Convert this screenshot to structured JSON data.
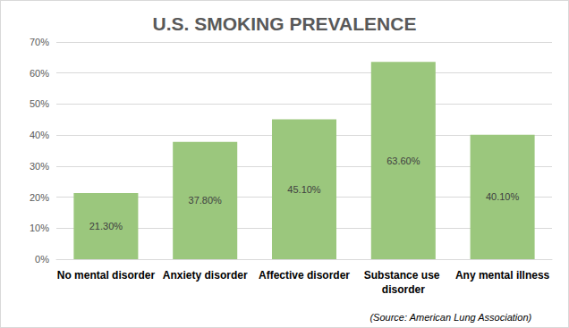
{
  "chart_data": {
    "type": "bar",
    "title": "U.S. SMOKING PREVALENCE",
    "categories": [
      "No mental disorder",
      "Anxiety disorder",
      "Affective disorder",
      "Substance use disorder",
      "Any mental illness"
    ],
    "values": [
      21.3,
      37.8,
      45.1,
      63.6,
      40.1
    ],
    "value_labels": [
      "21.30%",
      "37.80%",
      "45.10%",
      "63.60%",
      "40.10%"
    ],
    "color": "#9bc77d",
    "ylim": [
      0,
      70
    ],
    "yticks": [
      {
        "value": 0,
        "label": "0%"
      },
      {
        "value": 10,
        "label": "10%"
      },
      {
        "value": 20,
        "label": "20%"
      },
      {
        "value": 30,
        "label": "30%"
      },
      {
        "value": 40,
        "label": "40%"
      },
      {
        "value": 50,
        "label": "50%"
      },
      {
        "value": 60,
        "label": "60%"
      },
      {
        "value": 70,
        "label": "70%"
      }
    ],
    "grid": true,
    "data_labels": true,
    "annotations": [
      "(Source: American Lung Association)"
    ]
  }
}
